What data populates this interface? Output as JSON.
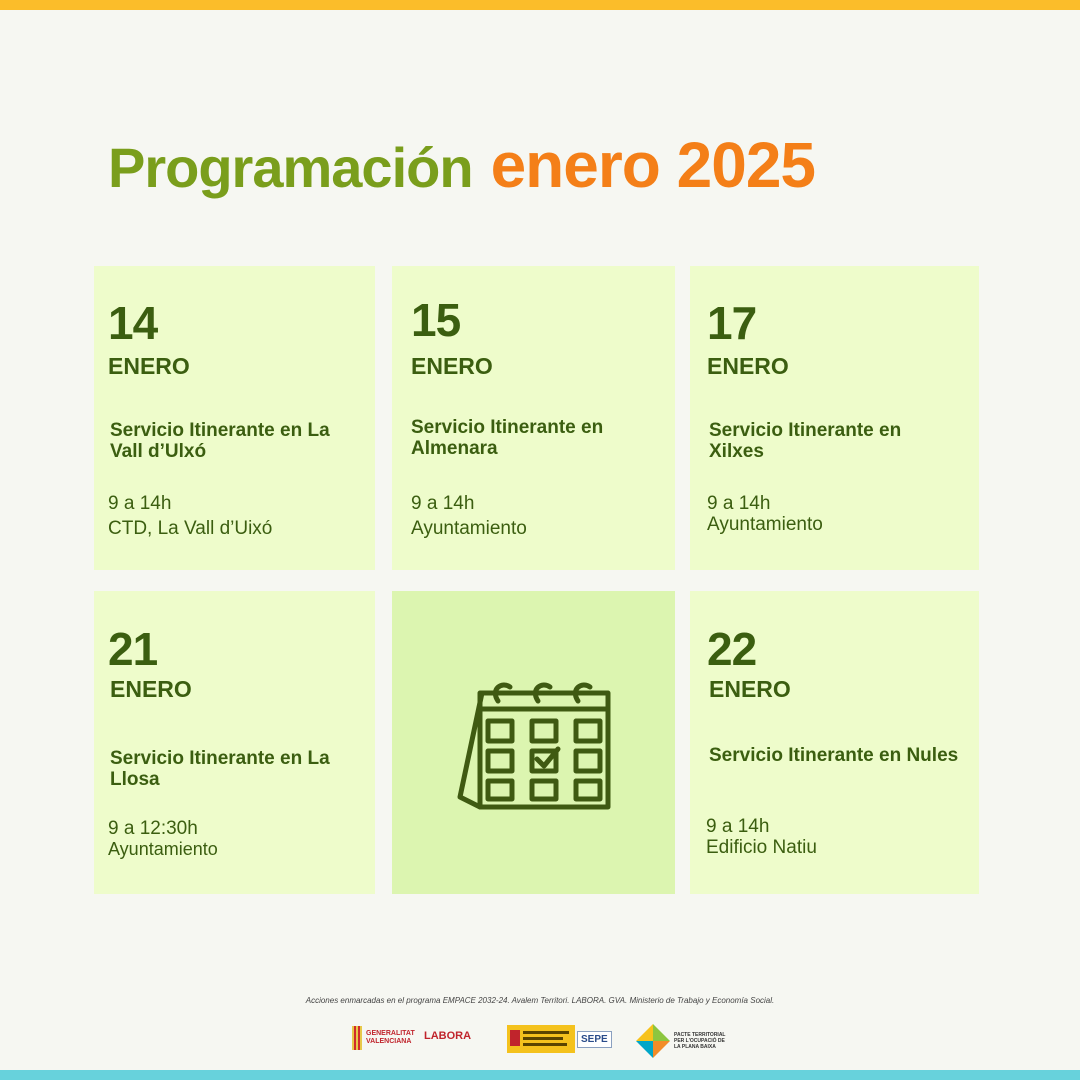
{
  "title": {
    "part1": "Programación",
    "part2": "enero 2025"
  },
  "events": [
    {
      "day": "14",
      "month": "ENERO",
      "service": "Servicio Itinerante en La Vall d’Ulxó",
      "time": "9 a 14h",
      "place": "CTD, La Vall d’Uixó"
    },
    {
      "day": "15",
      "month": "ENERO",
      "service": "Servicio Itinerante en Almenara",
      "time": "9 a 14h",
      "place": "Ayuntamiento"
    },
    {
      "day": "17",
      "month": "ENERO",
      "service": "Servicio Itinerante en Xilxes",
      "time": "9 a 14h",
      "place": "Ayuntamiento"
    },
    {
      "day": "21",
      "month": "ENERO",
      "service": "Servicio Itinerante en La Llosa",
      "time": "9 a 12:30h",
      "place": "Ayuntamiento"
    },
    {
      "day": "22",
      "month": "ENERO",
      "service": "Servicio Itinerante en Nules",
      "time": "9 a 14h",
      "place": "Edificio Natiu"
    }
  ],
  "center_icon": "calendar-check-icon",
  "footer": {
    "text": "Acciones enmarcadas en el programa EMPACE 2032-24. Avalem Territori. LABORA. GVA. Ministerio de Trabajo y Economía Social.",
    "logos": {
      "generalitat": [
        "GENERALITAT",
        "VALENCIANA"
      ],
      "labora": "LABORA",
      "sepe": "SEPE",
      "pacte": [
        "PACTE TERRITORIAL",
        "PER L'OCUPACIÓ DE",
        "LA PLANA BAIXA"
      ]
    }
  },
  "colors": {
    "accent_green": "#7a9e1c",
    "accent_orange": "#f47f18",
    "card_bg": "#eefccb",
    "text_dark_green": "#3b5e10",
    "top_bar": "#fbbd2a",
    "bottom_bar": "#67d2dc"
  }
}
